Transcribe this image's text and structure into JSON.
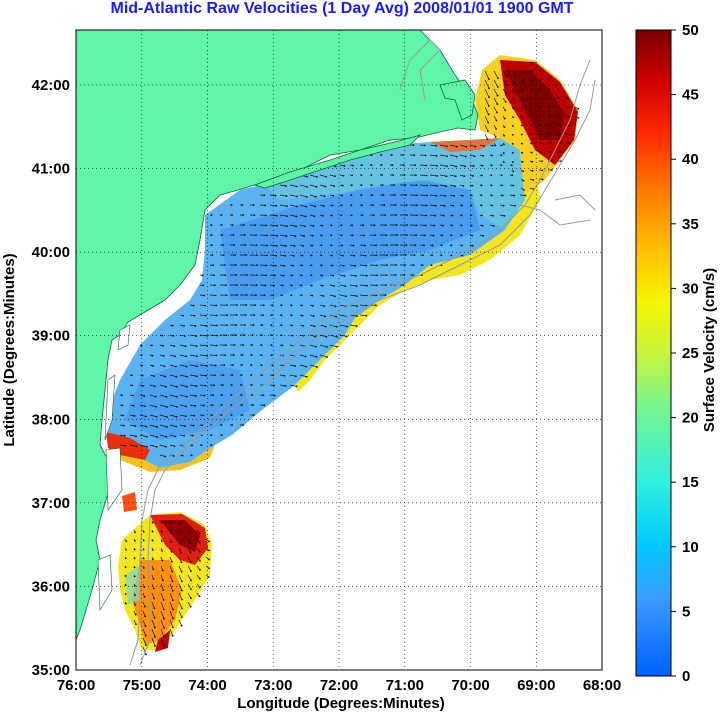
{
  "title": "Mid-Atlantic Raw Velocities (1 Day Avg) 2008/01/01 1900 GMT",
  "x_axis": {
    "label": "Longitude (Degrees:Minutes)",
    "ticks": [
      "76:00",
      "75:00",
      "74:00",
      "73:00",
      "72:00",
      "71:00",
      "70:00",
      "69:00",
      "68:00"
    ]
  },
  "y_axis": {
    "label": "Latitude (Degrees:Minutes)",
    "ticks": [
      "35:00",
      "36:00",
      "37:00",
      "38:00",
      "39:00",
      "40:00",
      "41:00",
      "42:00"
    ]
  },
  "colorbar": {
    "label": "Surface Velocity (cm/s)",
    "ticks": [
      "0",
      "5",
      "10",
      "15",
      "20",
      "25",
      "30",
      "35",
      "40",
      "45",
      "50"
    ],
    "range": [
      0,
      50
    ]
  },
  "colors": {
    "land": "#5ff5a8",
    "water_background": "#ffffff",
    "title": "#1a1aff",
    "bathymetry": "#9a9a9a"
  }
}
